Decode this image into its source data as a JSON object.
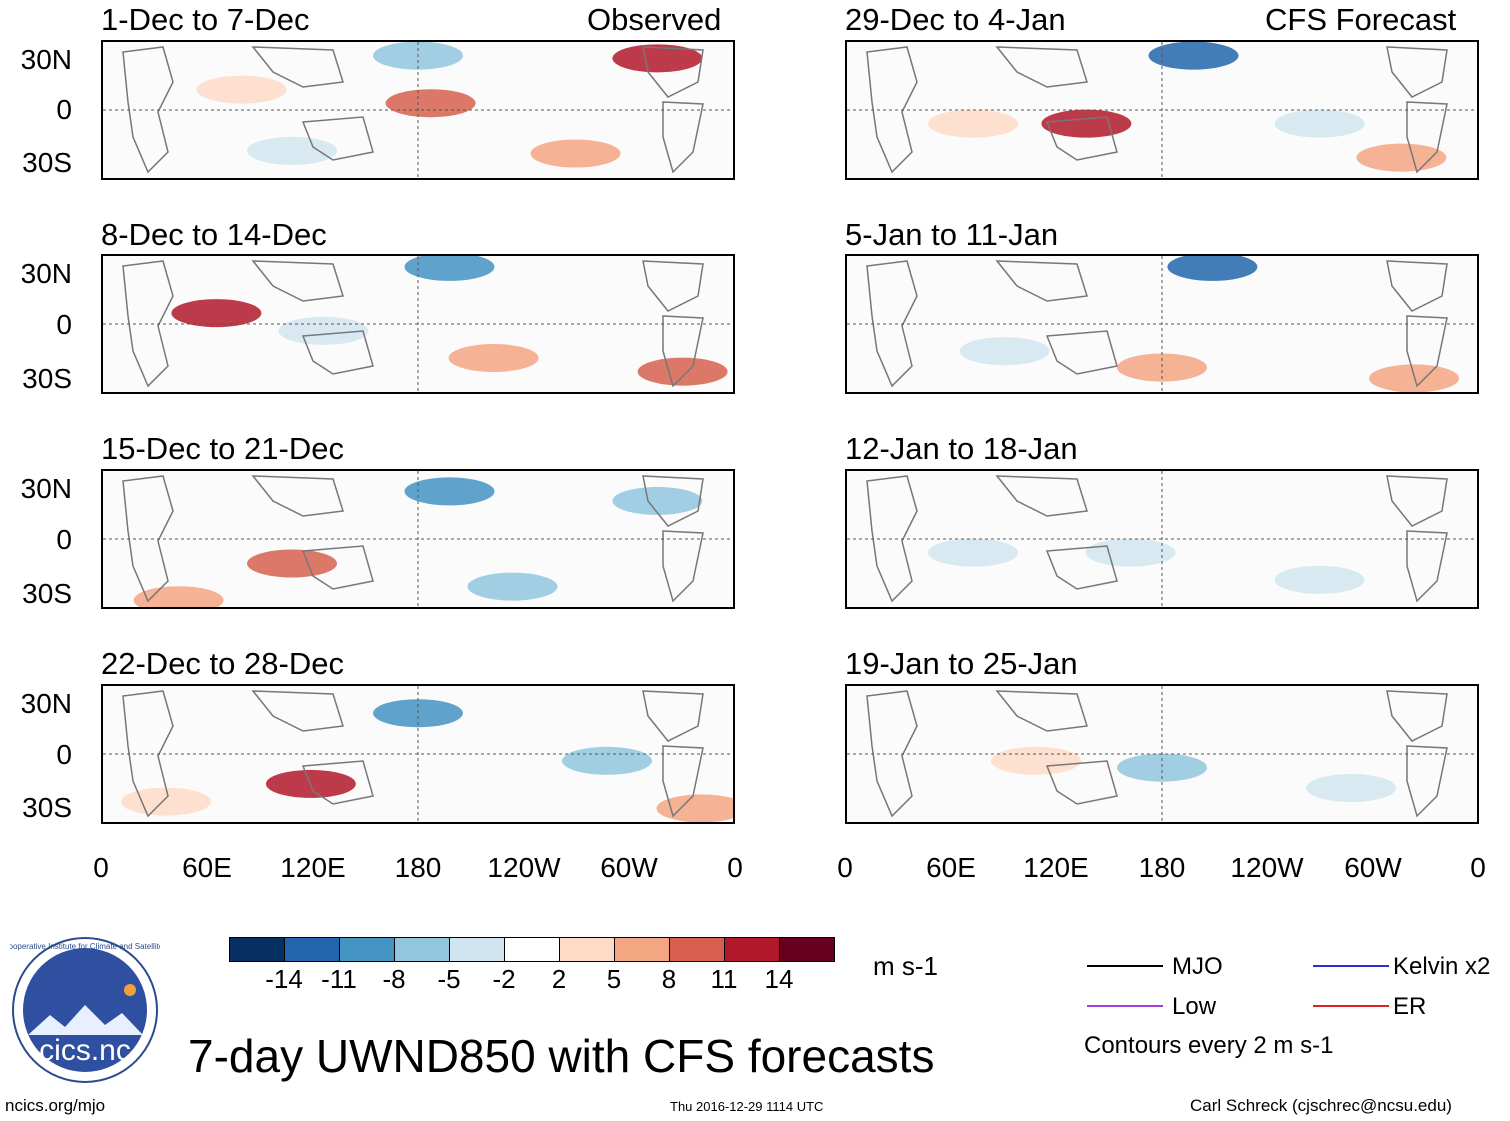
{
  "figure_title": "7-day UWND850 with CFS forecasts",
  "observed_label": "Observed",
  "forecast_label": "CFS Forecast",
  "panels_left": [
    {
      "title": "1-Dec to 7-Dec"
    },
    {
      "title": "8-Dec to 14-Dec"
    },
    {
      "title": "15-Dec to 21-Dec"
    },
    {
      "title": "22-Dec to 28-Dec"
    }
  ],
  "panels_right": [
    {
      "title": "29-Dec to 4-Jan"
    },
    {
      "title": "5-Jan to 11-Jan"
    },
    {
      "title": "12-Jan to 18-Jan"
    },
    {
      "title": "19-Jan to 25-Jan"
    }
  ],
  "lat_labels": [
    "30N",
    "0",
    "30S"
  ],
  "lon_labels": [
    "0",
    "60E",
    "120E",
    "180",
    "120W",
    "60W",
    "0"
  ],
  "colorbar": {
    "unit": "m s-1",
    "labels": [
      "-14",
      "-11",
      "-8",
      "-5",
      "-2",
      "2",
      "5",
      "8",
      "11",
      "14"
    ],
    "colors": [
      "#053061",
      "#2166ac",
      "#4393c3",
      "#92c5de",
      "#d1e5f0",
      "#ffffff",
      "#fddbc7",
      "#f4a582",
      "#d6604d",
      "#b2182b",
      "#67001f"
    ]
  },
  "legend": {
    "mjo": "MJO",
    "low": "Low",
    "kelvin": "Kelvin x2",
    "er": "ER",
    "mjo_color": "#000000",
    "low_color": "#a040e0",
    "kelvin_color": "#2233dd",
    "er_color": "#dd2222",
    "note": "Contours every 2 m s-1"
  },
  "logo_text": "cics.nc",
  "logo_ring_text": "Cooperative Institute for Climate and Satellites",
  "footer": {
    "left": "ncics.org/mjo",
    "center": "Thu 2016-12-29 1114 UTC",
    "right": "Carl Schreck (cjschrec@ncsu.edu)"
  }
}
